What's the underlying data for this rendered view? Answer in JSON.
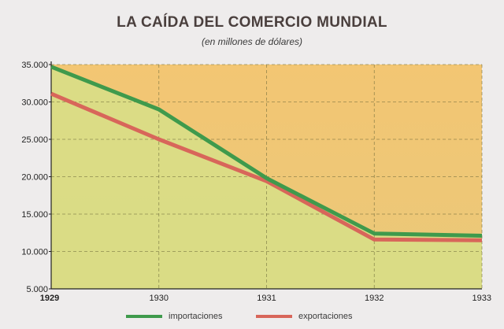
{
  "chart_data": {
    "type": "line",
    "title": "LA CAÍDA DEL COMERCIO MUNDIAL",
    "subtitle": "(en millones de dólares)",
    "x": [
      1929,
      1930,
      1931,
      1932,
      1933
    ],
    "x_tick_labels": [
      "1929",
      "1930",
      "1931",
      "1932",
      "1933"
    ],
    "ylim": [
      5000,
      35000
    ],
    "y_ticks": [
      5000,
      10000,
      15000,
      20000,
      25000,
      30000,
      35000
    ],
    "y_tick_labels": [
      "5.000",
      "10.000",
      "15.000",
      "20.000",
      "25.000",
      "30.000",
      "35.000"
    ],
    "grid": true,
    "legend_position": "bottom",
    "series": [
      {
        "name": "importaciones",
        "color": "#3f9a4c",
        "values": [
          34700,
          29000,
          19800,
          12400,
          12100
        ]
      },
      {
        "name": "exportaciones",
        "color": "#d8665a",
        "values": [
          31100,
          25000,
          19400,
          11600,
          11500
        ]
      }
    ],
    "colors": {
      "background_top": "#f3c673",
      "background_bottom": "#d9dd86",
      "grid": "#6d6a3a"
    }
  }
}
